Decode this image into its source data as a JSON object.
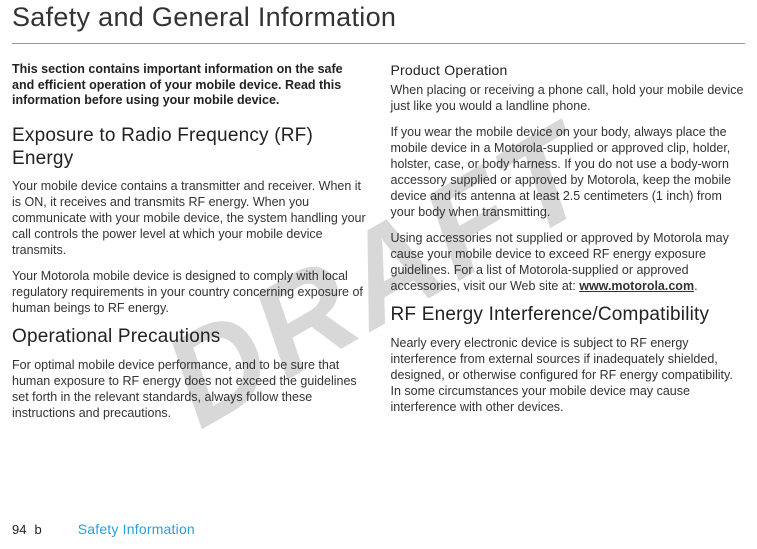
{
  "watermark": "DRAFT",
  "title": "Safety and General Information",
  "left": {
    "intro": "This section contains important information on the safe and efficient operation of your mobile device. Read this information before using your mobile device.",
    "sec1_title": "Exposure to Radio Frequency (RF) Energy",
    "sec1_p1": "Your mobile device contains a transmitter and receiver. When it is ON, it receives and transmits RF energy. When you communicate with your mobile device, the system handling your call controls the power level at which your mobile device transmits.",
    "sec1_p2": "Your Motorola mobile device is designed to comply with local regulatory requirements in your country concerning exposure of human beings to RF energy.",
    "sec2_title": "Operational Precautions",
    "sec2_p1": "For optimal mobile device performance, and to be sure that human exposure to RF energy does not exceed the guidelines set forth in the relevant standards, always follow these instructions and precautions."
  },
  "right": {
    "sub1_title": "Product Operation",
    "sub1_p1": "When placing or receiving a phone call, hold your mobile device just like you would a landline phone.",
    "sub1_p2": "If you wear the mobile device on your body, always place the mobile device in a Motorola-supplied or approved clip, holder, holster, case, or body harness. If you do not use a body-worn accessory supplied or approved by Motorola, keep the mobile device and its antenna at least 2.5 centimeters (1 inch) from your body when transmitting.",
    "sub1_p3_a": "Using accessories not supplied or approved by Motorola may cause your mobile device to exceed RF energy exposure guidelines. For a list of Motorola-supplied or approved accessories, visit our Web site at: ",
    "sub1_p3_link": "www.motorola.com",
    "sub1_p3_b": ".",
    "sec3_title": "RF Energy Interference/Compatibility",
    "sec3_p1": "Nearly every electronic device is subject to RF energy interference from external sources if inadequately shielded, designed, or otherwise configured for RF energy compatibility. In some circumstances your mobile device may cause interference with other devices."
  },
  "footer": {
    "page": "94",
    "b": "b",
    "label": "Safety Information"
  }
}
